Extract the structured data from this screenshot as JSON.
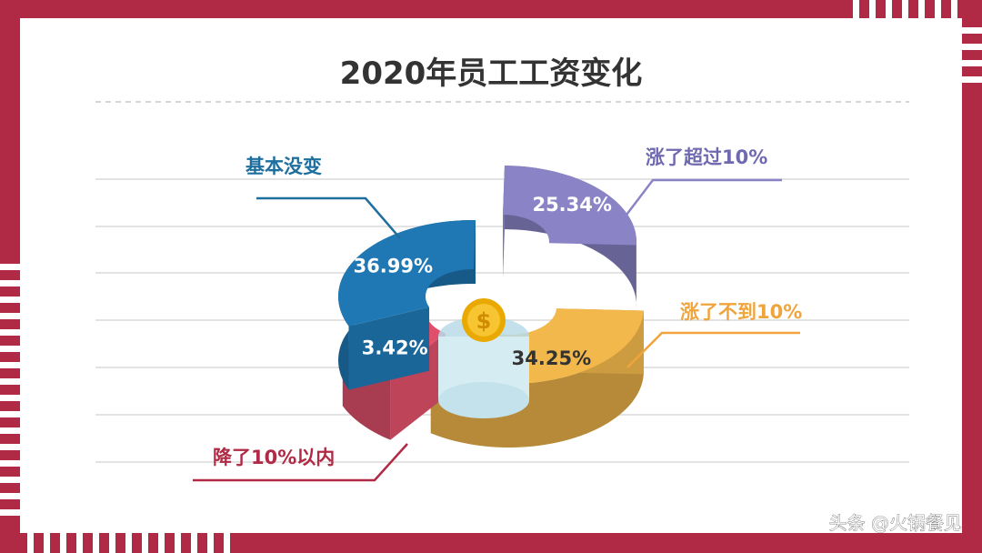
{
  "chart_data": {
    "type": "pie",
    "title": "2020年员工工资变化",
    "slices": [
      {
        "label": "基本没变",
        "value": 36.99,
        "value_label": "36.99%",
        "color": "#1f78b4"
      },
      {
        "label": "涨了超过10%",
        "value": 25.34,
        "value_label": "25.34%",
        "color": "#8a84c6"
      },
      {
        "label": "涨了不到10%",
        "value": 34.25,
        "value_label": "34.25%",
        "color": "#f2b84b"
      },
      {
        "label": "降了10%以内",
        "value": 3.42,
        "value_label": "3.42%",
        "color": "#e0506a"
      }
    ]
  },
  "footer": {
    "credit": "头条 @火锅餐见"
  },
  "colors": {
    "frame": "#b02a45",
    "title": "#333333",
    "label_blue": "#1e6f9e",
    "label_purple": "#6f69b0",
    "label_orange": "#f0a43c",
    "label_red": "#b02a45"
  }
}
